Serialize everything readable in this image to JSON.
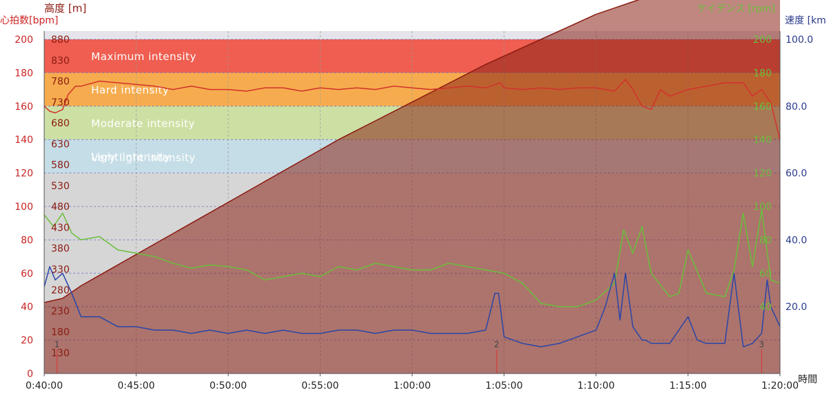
{
  "chart_data": {
    "type": "line",
    "axes": {
      "hr": {
        "label": "心拍数[bpm]",
        "min": 0,
        "max": 200,
        "ticks": [
          "0",
          "20",
          "40",
          "60",
          "80",
          "100",
          "120",
          "140",
          "160",
          "180",
          "200"
        ],
        "color": "#cc2222"
      },
      "altitude": {
        "label": "高度 [m]",
        "min": 80,
        "max": 880,
        "ticks": [
          "130",
          "180",
          "230",
          "280",
          "330",
          "380",
          "430",
          "480",
          "530",
          "580",
          "630",
          "680",
          "730",
          "780",
          "830",
          "880"
        ],
        "color": "#8b1a10"
      },
      "cadence": {
        "label": "ケイデンス [rpm]",
        "min": 0,
        "max": 200,
        "ticks": [
          "40",
          "60",
          "80",
          "100",
          "120",
          "140",
          "160",
          "180",
          "200"
        ],
        "color": "#6abf3a"
      },
      "speed": {
        "label": "速度 [km",
        "min": 0,
        "max": 100,
        "ticks": [
          "20.0",
          "40.0",
          "60.0",
          "80.0",
          "100.0"
        ],
        "color": "#2a3a8a"
      },
      "time": {
        "label": "時間",
        "min": 40,
        "max": 80,
        "ticks": [
          "0:40:00",
          "0:45:00",
          "0:50:00",
          "0:55:00",
          "1:00:00",
          "1:05:00",
          "1:10:00",
          "1:15:00",
          "1:20:00"
        ]
      }
    },
    "zones": [
      {
        "name": "Maximum intensity",
        "from": 180,
        "to": 200,
        "color": "#ef5e50"
      },
      {
        "name": "Hard intensity",
        "from": 160,
        "to": 180,
        "color": "#f6ac4e"
      },
      {
        "name": "Moderate intensity",
        "from": 140,
        "to": 160,
        "color": "#cde0a4"
      },
      {
        "name": "Light intensity",
        "from": 120,
        "to": 140,
        "color": "#c5dde6"
      },
      {
        "name": "Very light intensity",
        "from": 0,
        "to": 120,
        "color": "#d6d6d6"
      }
    ],
    "laps": [
      {
        "label": "1",
        "t": 40.7
      },
      {
        "label": "2",
        "t": 64.6
      },
      {
        "label": "3",
        "t": 79.0
      }
    ],
    "series": [
      {
        "key": "altitude",
        "axis": "altitude",
        "color": "#8b1a10",
        "x": [
          40,
          41,
          42,
          44,
          46,
          48,
          50,
          52,
          54,
          56,
          58,
          60,
          62,
          64,
          66,
          68,
          70,
          72,
          74,
          76,
          78,
          79.5,
          80
        ],
        "y": [
          250,
          260,
          290,
          340,
          390,
          440,
          490,
          540,
          590,
          640,
          685,
          730,
          775,
          820,
          860,
          900,
          940,
          970,
          1000,
          1030,
          1060,
          1080,
          1060
        ]
      },
      {
        "key": "hr",
        "axis": "hr",
        "color": "#d2312b",
        "x": [
          40,
          40.3,
          40.6,
          41,
          41.3,
          41.7,
          42,
          43,
          44,
          45,
          46,
          47,
          48,
          49,
          50,
          51,
          52,
          53,
          54,
          55,
          56,
          57,
          58,
          59,
          60,
          61,
          62,
          63,
          64,
          64.8,
          65,
          66,
          67,
          68,
          69,
          70,
          71,
          71.6,
          72,
          72.5,
          73,
          73.5,
          74,
          75,
          76,
          77,
          78,
          78.5,
          79,
          79.5,
          80
        ],
        "y": [
          160,
          157,
          156,
          158,
          167,
          172,
          172,
          175,
          174,
          173,
          172,
          170,
          172,
          170,
          170,
          169,
          171,
          171,
          169,
          171,
          170,
          171,
          170,
          172,
          171,
          170,
          171,
          172,
          171,
          174,
          171,
          170,
          171,
          170,
          171,
          171,
          169,
          176,
          170,
          160,
          158,
          170,
          166,
          170,
          172,
          174,
          174,
          166,
          170,
          162,
          140
        ]
      },
      {
        "key": "cadence",
        "axis": "cadence",
        "color": "#6abf3a",
        "x": [
          40,
          40.5,
          41,
          41.5,
          42,
          43,
          44,
          45,
          46,
          47,
          48,
          49,
          50,
          51,
          52,
          53,
          54,
          55,
          56,
          57,
          58,
          59,
          60,
          61,
          62,
          63,
          64,
          65,
          66,
          66.5,
          67,
          68,
          69,
          70,
          71,
          71.5,
          72,
          72.5,
          73,
          74,
          74.5,
          75,
          76,
          77,
          77.5,
          78,
          78.5,
          79,
          79.5,
          80
        ],
        "y": [
          95,
          88,
          96,
          84,
          80,
          82,
          74,
          72,
          70,
          66,
          63,
          65,
          64,
          62,
          56,
          58,
          60,
          58,
          64,
          62,
          66,
          64,
          62,
          62,
          66,
          64,
          62,
          60,
          54,
          48,
          42,
          40,
          40,
          44,
          54,
          86,
          72,
          88,
          60,
          46,
          48,
          74,
          48,
          46,
          62,
          96,
          64,
          98,
          56,
          54
        ]
      },
      {
        "key": "speed",
        "axis": "speed",
        "color": "#2a45a8",
        "x": [
          40,
          40.3,
          40.6,
          41,
          41.5,
          42,
          43,
          44,
          45,
          46,
          47,
          48,
          49,
          50,
          51,
          52,
          53,
          54,
          55,
          56,
          57,
          58,
          59,
          60,
          61,
          62,
          63,
          64,
          64.5,
          64.7,
          65,
          66,
          67,
          68,
          69,
          70,
          70.5,
          71,
          71.3,
          71.6,
          72,
          72.5,
          72.7,
          73,
          74,
          75,
          75.5,
          76,
          77,
          77.5,
          78,
          78.5,
          79,
          79.3,
          79.5,
          80
        ],
        "y": [
          26,
          32,
          28,
          30,
          24,
          17,
          17,
          14,
          14,
          13,
          13,
          12,
          13,
          12,
          13,
          12,
          13,
          12,
          12,
          13,
          13,
          12,
          13,
          13,
          12,
          12,
          12,
          13,
          24,
          24,
          11,
          9,
          8,
          9,
          11,
          13,
          20,
          30,
          16,
          30,
          14,
          10,
          10,
          9,
          9,
          17,
          10,
          9,
          9,
          30,
          8,
          9,
          12,
          28,
          20,
          14
        ]
      }
    ]
  }
}
